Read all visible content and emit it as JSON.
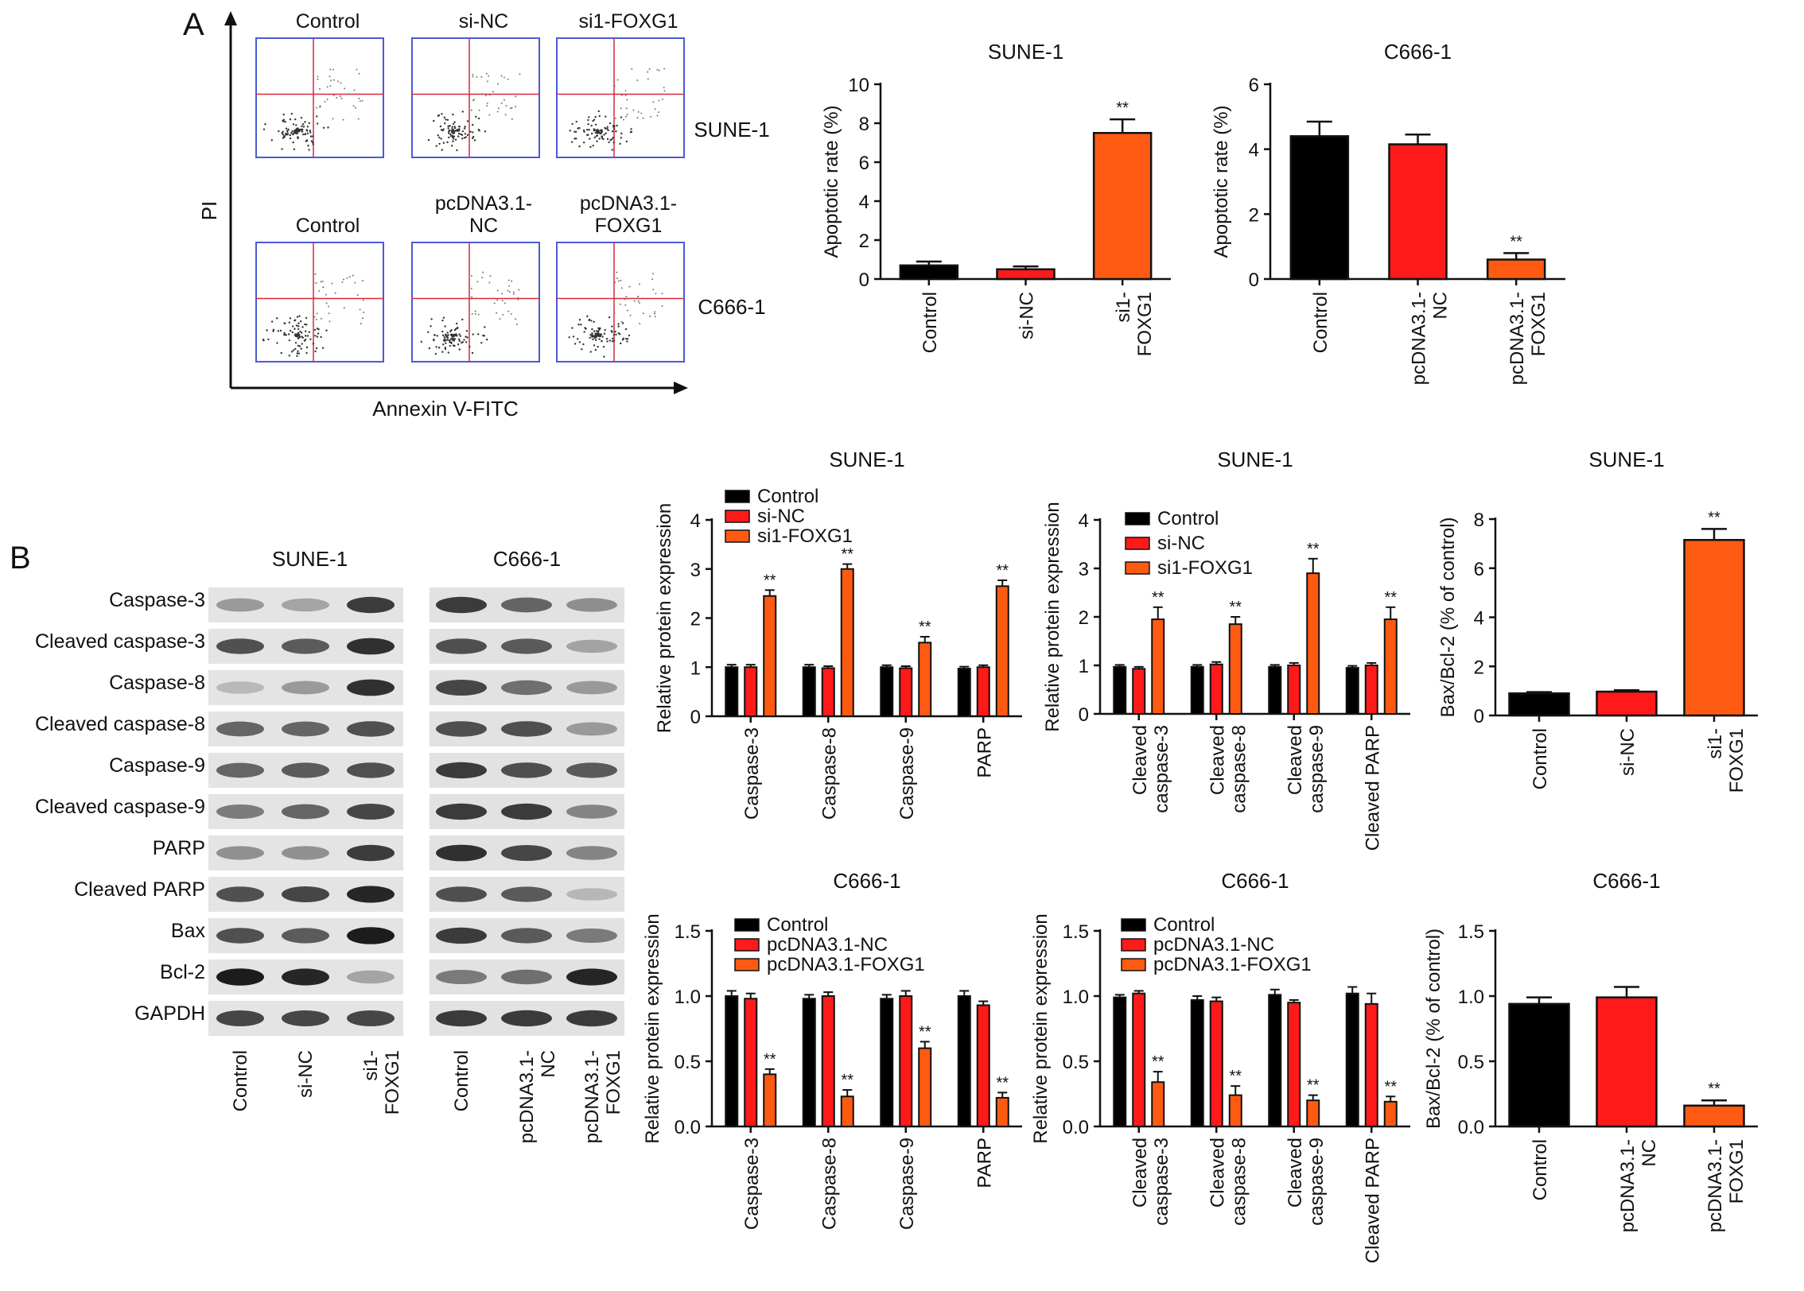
{
  "colors": {
    "control": "#000000",
    "nc": "#ff1a1a",
    "foxg1": "#ff5a12",
    "facs_box": "#4a5bd6",
    "facs_gate": "#d8283c"
  },
  "panel_a": {
    "letter": "A",
    "facs": {
      "y_axis_label": "PI",
      "x_axis_label": "Annexin V-FITC",
      "rows": [
        {
          "cell_line": "SUNE-1",
          "titles": [
            "Control",
            "si-NC",
            "si1-FOXG1"
          ]
        },
        {
          "cell_line": "C666-1",
          "titles": [
            "Control",
            "pcDNA3.1-\nNC",
            "pcDNA3.1-\nFOXG1"
          ]
        }
      ]
    }
  },
  "panel_b": {
    "letter": "B",
    "blot": {
      "cell_lines": [
        "SUNE-1",
        "C666-1"
      ],
      "proteins": [
        "Caspase-3",
        "Cleaved caspase-3",
        "Caspase-8",
        "Cleaved caspase-8",
        "Caspase-9",
        "Cleaved caspase-9",
        "PARP",
        "Cleaved PARP",
        "Bax",
        "Bcl-2",
        "GAPDH"
      ],
      "lanes_left": [
        "Control",
        "si-NC",
        "si1-\nFOXG1"
      ],
      "lanes_right": [
        "Control",
        "pcDNA3.1-\nNC",
        "pcDNA3.1-\nFOXG1"
      ]
    }
  },
  "chart_data": [
    {
      "id": "a_sune",
      "type": "bar",
      "title": "SUNE-1",
      "ylabel": "Apoptotic rate (%)",
      "ylim": [
        0,
        10
      ],
      "yticks": [
        "0",
        "2",
        "4",
        "6",
        "8",
        "10"
      ],
      "categories": [
        "Control",
        "si-NC",
        "si1-\nFOXG1"
      ],
      "values": [
        0.7,
        0.5,
        7.5
      ],
      "errors": [
        0.2,
        0.15,
        0.7
      ],
      "significance": [
        "",
        "",
        "**"
      ]
    },
    {
      "id": "a_c666",
      "type": "bar",
      "title": "C666-1",
      "ylabel": "Apoptotic rate (%)",
      "ylim": [
        0,
        6
      ],
      "yticks": [
        "0",
        "2",
        "4",
        "6"
      ],
      "categories": [
        "Control",
        "pcDNA3.1-\nNC",
        "pcDNA3.1-\nFOXG1"
      ],
      "values": [
        4.4,
        4.15,
        0.6
      ],
      "errors": [
        0.45,
        0.3,
        0.2
      ],
      "significance": [
        "",
        "",
        "**"
      ]
    },
    {
      "id": "b_sune_total",
      "type": "bar",
      "title": "SUNE-1",
      "ylabel": "Relative protein expression",
      "ylim": [
        0,
        4
      ],
      "yticks": [
        "0",
        "1",
        "2",
        "3",
        "4"
      ],
      "categories": [
        "Caspase-3",
        "Caspase-8",
        "Caspase-9",
        "PARP"
      ],
      "series": [
        {
          "name": "Control",
          "values": [
            1.0,
            1.0,
            1.0,
            0.97
          ],
          "errors": [
            0.05,
            0.05,
            0.04,
            0.04
          ]
        },
        {
          "name": "si-NC",
          "values": [
            1.0,
            0.98,
            0.98,
            1.0
          ],
          "errors": [
            0.05,
            0.04,
            0.04,
            0.04
          ]
        },
        {
          "name": "si1-FOXG1",
          "values": [
            2.45,
            3.0,
            1.5,
            2.65
          ],
          "errors": [
            0.12,
            0.1,
            0.12,
            0.12
          ]
        }
      ],
      "significance": [
        "**",
        "**",
        "**",
        "**"
      ]
    },
    {
      "id": "b_sune_cleaved",
      "type": "bar",
      "title": "SUNE-1",
      "ylabel": "Relative protein expression",
      "ylim": [
        0,
        4
      ],
      "yticks": [
        "0",
        "1",
        "2",
        "3",
        "4"
      ],
      "categories": [
        "Cleaved\ncaspase-3",
        "Cleaved\ncaspase-8",
        "Cleaved\ncaspase-9",
        "Cleaved PARP"
      ],
      "series": [
        {
          "name": "Control",
          "values": [
            0.97,
            0.97,
            0.97,
            0.95
          ],
          "errors": [
            0.04,
            0.04,
            0.04,
            0.04
          ]
        },
        {
          "name": "si-NC",
          "values": [
            0.93,
            1.02,
            1.0,
            1.0
          ],
          "errors": [
            0.04,
            0.05,
            0.05,
            0.05
          ]
        },
        {
          "name": "si1-FOXG1",
          "values": [
            1.95,
            1.85,
            2.9,
            1.95
          ],
          "errors": [
            0.25,
            0.15,
            0.3,
            0.25
          ]
        }
      ],
      "significance": [
        "**",
        "**",
        "**",
        "**"
      ]
    },
    {
      "id": "b_sune_ratio",
      "type": "bar",
      "title": "SUNE-1",
      "ylabel": "Bax/Bcl-2 (% of control)",
      "ylim": [
        0,
        8
      ],
      "yticks": [
        "0",
        "2",
        "4",
        "6",
        "8"
      ],
      "categories": [
        "Control",
        "si-NC",
        "si1-\nFOXG1"
      ],
      "values": [
        0.9,
        0.97,
        7.15
      ],
      "errors": [
        0.05,
        0.06,
        0.45
      ],
      "significance": [
        "",
        "",
        "**"
      ]
    },
    {
      "id": "b_c666_total",
      "type": "bar",
      "title": "C666-1",
      "ylabel": "Relative protein expression",
      "ylim": [
        0,
        1.5
      ],
      "yticks": [
        "0.0",
        "0.5",
        "1.0",
        "1.5"
      ],
      "categories": [
        "Caspase-3",
        "Caspase-8",
        "Caspase-9",
        "PARP"
      ],
      "series": [
        {
          "name": "Control",
          "values": [
            1.0,
            0.98,
            0.98,
            1.0
          ],
          "errors": [
            0.04,
            0.03,
            0.03,
            0.04
          ]
        },
        {
          "name": "pcDNA3.1-NC",
          "values": [
            0.98,
            1.0,
            1.0,
            0.93
          ],
          "errors": [
            0.04,
            0.03,
            0.04,
            0.03
          ]
        },
        {
          "name": "pcDNA3.1-FOXG1",
          "values": [
            0.4,
            0.23,
            0.6,
            0.22
          ],
          "errors": [
            0.04,
            0.05,
            0.05,
            0.04
          ]
        }
      ],
      "significance": [
        "**",
        "**",
        "**",
        "**"
      ]
    },
    {
      "id": "b_c666_cleaved",
      "type": "bar",
      "title": "C666-1",
      "ylabel": "Relative protein expression",
      "ylim": [
        0,
        1.5
      ],
      "yticks": [
        "0.0",
        "0.5",
        "1.0",
        "1.5"
      ],
      "categories": [
        "Cleaved\ncaspase-3",
        "Cleaved\ncaspase-8",
        "Cleaved\ncaspase-9",
        "Cleaved PARP"
      ],
      "series": [
        {
          "name": "Control",
          "values": [
            0.99,
            0.97,
            1.01,
            1.02
          ],
          "errors": [
            0.02,
            0.03,
            0.04,
            0.05
          ]
        },
        {
          "name": "pcDNA3.1-NC",
          "values": [
            1.02,
            0.96,
            0.95,
            0.94
          ],
          "errors": [
            0.02,
            0.03,
            0.02,
            0.08
          ]
        },
        {
          "name": "pcDNA3.1-FOXG1",
          "values": [
            0.34,
            0.24,
            0.2,
            0.19
          ],
          "errors": [
            0.08,
            0.07,
            0.04,
            0.04
          ]
        }
      ],
      "significance": [
        "**",
        "**",
        "**",
        "**"
      ]
    },
    {
      "id": "b_c666_ratio",
      "type": "bar",
      "title": "C666-1",
      "ylabel": "Bax/Bcl-2 (% of control)",
      "ylim": [
        0,
        1.5
      ],
      "yticks": [
        "0.0",
        "0.5",
        "1.0",
        "1.5"
      ],
      "categories": [
        "Control",
        "pcDNA3.1-\nNC",
        "pcDNA3.1-\nFOXG1"
      ],
      "values": [
        0.94,
        0.99,
        0.16
      ],
      "errors": [
        0.05,
        0.08,
        0.04
      ],
      "significance": [
        "",
        "",
        "**"
      ]
    }
  ]
}
